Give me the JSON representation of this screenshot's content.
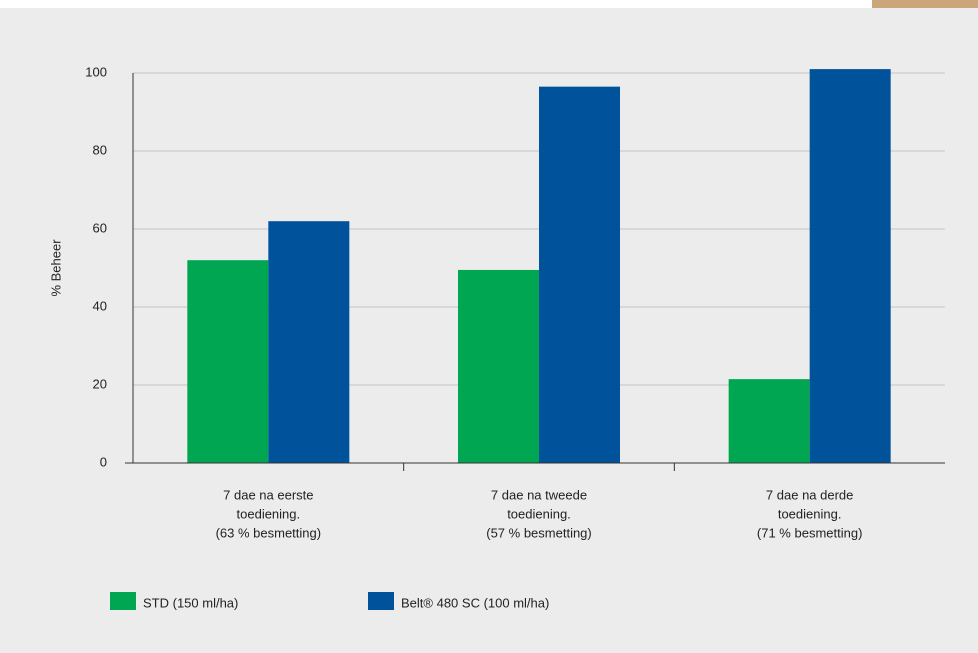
{
  "chart_data": {
    "type": "bar",
    "y_label": "% Beheer",
    "categories": [
      [
        "7 dae na eerste",
        "toediening.",
        "(63 % besmetting)"
      ],
      [
        "7 dae na tweede",
        "toediening.",
        "(57 % besmetting)"
      ],
      [
        "7 dae na derde",
        "toediening.",
        "(71 % besmetting)"
      ]
    ],
    "series": [
      {
        "name": "STD  (150 ml/ha)",
        "color": "#00a651",
        "values": [
          52,
          49.5,
          21.5
        ]
      },
      {
        "name": "Belt® 480 SC (100 ml/ha)",
        "color": "#00529b",
        "values": [
          62,
          96.5,
          101
        ]
      }
    ],
    "ylim": [
      0,
      100
    ],
    "yticks": [
      0,
      20,
      40,
      60,
      80,
      100
    ],
    "grid": true,
    "legend": "bottom"
  }
}
